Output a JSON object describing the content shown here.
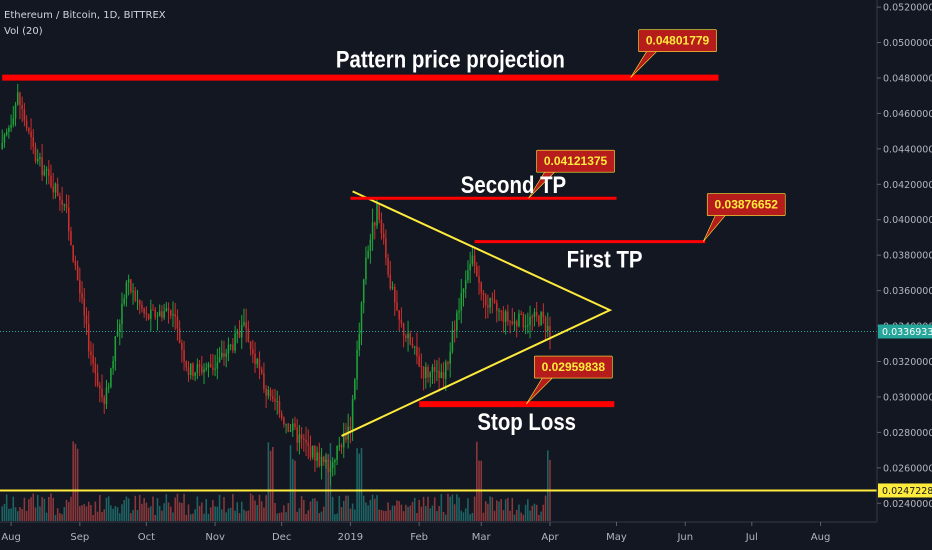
{
  "header": {
    "title": "Ethereum / Bitcoin, 1D, BITTREX",
    "volume_label": "Vol (20)"
  },
  "chart_data": {
    "type": "candlestick",
    "ylim": [
      0.023,
      0.0524
    ],
    "y_ticks": [
      0.024,
      0.026,
      0.028,
      0.03,
      0.032,
      0.034,
      0.036,
      0.038,
      0.04,
      0.042,
      0.044,
      0.046,
      0.048,
      0.05,
      0.052
    ],
    "y_tick_labels": [
      "0.02400000",
      "0.02600000",
      "0.02800000",
      "0.03000000",
      "0.03200000",
      "0.03400000",
      "0.03600000",
      "0.03800000",
      "0.04000000",
      "0.04200000",
      "0.04400000",
      "0.04600000",
      "0.04800000",
      "0.05000000",
      "0.05200000"
    ],
    "x_ticks": [
      "Aug",
      "Sep",
      "Oct",
      "Nov",
      "Dec",
      "2019",
      "Feb",
      "Mar",
      "Apr",
      "May",
      "Jun",
      "Jul",
      "Aug"
    ],
    "x_tick_dates": [
      "2018-08-01",
      "2018-09-01",
      "2018-10-01",
      "2018-11-01",
      "2018-12-01",
      "2019-01-01",
      "2019-02-01",
      "2019-03-01",
      "2019-04-01",
      "2019-05-01",
      "2019-06-01",
      "2019-07-01",
      "2019-08-01"
    ],
    "xlim": [
      "2018-07-27",
      "2019-08-26"
    ],
    "price_key_points": [
      {
        "date": "2018-07-28",
        "value": 0.044
      },
      {
        "date": "2018-08-04",
        "value": 0.047
      },
      {
        "date": "2018-08-12",
        "value": 0.0435
      },
      {
        "date": "2018-08-25",
        "value": 0.041
      },
      {
        "date": "2018-09-05",
        "value": 0.033
      },
      {
        "date": "2018-09-12",
        "value": 0.0295
      },
      {
        "date": "2018-09-22",
        "value": 0.0365
      },
      {
        "date": "2018-10-01",
        "value": 0.0345
      },
      {
        "date": "2018-10-12",
        "value": 0.035
      },
      {
        "date": "2018-10-20",
        "value": 0.0315
      },
      {
        "date": "2018-11-01",
        "value": 0.0318
      },
      {
        "date": "2018-11-14",
        "value": 0.0338
      },
      {
        "date": "2018-11-25",
        "value": 0.03
      },
      {
        "date": "2018-12-08",
        "value": 0.0278
      },
      {
        "date": "2018-12-22",
        "value": 0.026
      },
      {
        "date": "2019-01-01",
        "value": 0.0285
      },
      {
        "date": "2019-01-08",
        "value": 0.038
      },
      {
        "date": "2019-01-13",
        "value": 0.0405
      },
      {
        "date": "2019-01-22",
        "value": 0.0345
      },
      {
        "date": "2019-02-03",
        "value": 0.0315
      },
      {
        "date": "2019-02-12",
        "value": 0.031
      },
      {
        "date": "2019-02-18",
        "value": 0.0345
      },
      {
        "date": "2019-02-25",
        "value": 0.0378
      },
      {
        "date": "2019-03-02",
        "value": 0.0355
      },
      {
        "date": "2019-03-15",
        "value": 0.0342
      },
      {
        "date": "2019-03-28",
        "value": 0.0345
      },
      {
        "date": "2019-04-01",
        "value": 0.0337
      }
    ],
    "volume_spike_dates": [
      "2018-08-30",
      "2018-11-26",
      "2018-12-06",
      "2018-12-22",
      "2019-01-05",
      "2019-02-28",
      "2019-04-01"
    ],
    "current_price": {
      "value": 0.03369332,
      "label": "0.03369332",
      "color": "#26a69a"
    },
    "support_line": {
      "value": 0.02472286,
      "label": "0.02472286",
      "color": "#ffeb3b"
    },
    "triangle": {
      "color": "#ffeb3b",
      "points": [
        {
          "date": "2019-01-02",
          "value": 0.0416
        },
        {
          "date": "2019-04-28",
          "value": 0.0349
        },
        {
          "date": "2018-12-28",
          "value": 0.0278
        }
      ]
    },
    "levels": [
      {
        "name": "Pattern price projection",
        "value": 0.04801779,
        "label": "0.04801779",
        "from": "2018-07-28",
        "to": "2019-06-16"
      },
      {
        "name": "Second TP",
        "value": 0.04121375,
        "label": "0.04121375",
        "from": "2019-01-01",
        "to": "2019-05-01"
      },
      {
        "name": "First TP",
        "value": 0.03876652,
        "label": "0.03876652",
        "from": "2019-02-26",
        "to": "2019-06-10"
      },
      {
        "name": "Stop Loss",
        "value": 0.02959838,
        "label": "0.02959838",
        "from": "2019-02-01",
        "to": "2019-04-30"
      }
    ],
    "colors": {
      "background": "#131722",
      "up": "#26a69a",
      "down": "#ef5350",
      "up_candle": "#1fa33a",
      "down_candle": "#c9302c",
      "level_line": "#ff0000",
      "tag_bg": "#b71c1c",
      "tag_text": "#ffeb3b",
      "axis_text": "#b2b5be"
    }
  }
}
